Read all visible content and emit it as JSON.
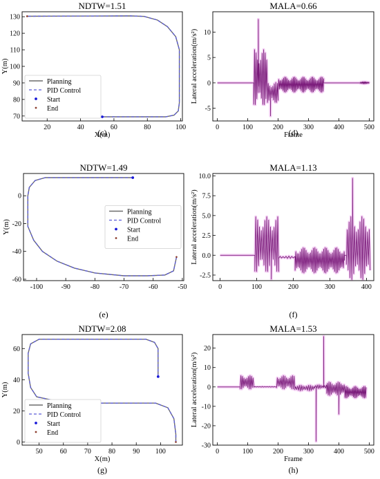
{
  "colors": {
    "planning": "#6b6b6b",
    "pid": "#5a5ad6",
    "start": "#1818d8",
    "end": "#8b3a2a",
    "accel_line": "#7a1a7a",
    "accel_glow": "#e9a6ea"
  },
  "chart_data": [
    {
      "id": "c",
      "type": "line",
      "title": "NDTW=1.51",
      "caption": "(c)",
      "xlabel": "X(m)",
      "ylabel": "Y(m)",
      "xlim": [
        5,
        101
      ],
      "ylim": [
        67,
        133
      ],
      "xticks": [
        20,
        40,
        60,
        80,
        100
      ],
      "yticks": [
        70,
        80,
        90,
        100,
        110,
        120,
        130
      ],
      "legend_pos": "bottom-left",
      "legend": [
        "Planning",
        "PID Control",
        "Start",
        "End"
      ],
      "path": [
        [
          53,
          69.5
        ],
        [
          91,
          69.5
        ],
        [
          96,
          70.5
        ],
        [
          98.5,
          73
        ],
        [
          99.2,
          78
        ],
        [
          99.2,
          110
        ],
        [
          97,
          118
        ],
        [
          92,
          124
        ],
        [
          86,
          128
        ],
        [
          78,
          130.2
        ],
        [
          70,
          130.5
        ],
        [
          8,
          130.3
        ]
      ],
      "start": [
        53,
        69.5
      ],
      "end": [
        8,
        130.3
      ]
    },
    {
      "id": "d",
      "type": "line",
      "title": "MALA=0.66",
      "caption": "(d)",
      "xlabel": "Frame",
      "ylabel": "Lateral acceleration(m/s²)",
      "xlim": [
        -15,
        515
      ],
      "ylim": [
        -7.5,
        14
      ],
      "xticks": [
        0,
        100,
        200,
        300,
        400,
        500
      ],
      "yticks": [
        -5,
        0,
        5,
        10
      ],
      "segments": [
        {
          "x0": 0,
          "x1": 120,
          "base": 0,
          "amp": 0,
          "period": 8
        },
        {
          "x0": 120,
          "x1": 165,
          "base": 0.5,
          "amp": 11,
          "period": 5
        },
        {
          "x0": 165,
          "x1": 200,
          "base": -2.5,
          "amp": 4,
          "period": 5
        },
        {
          "x0": 200,
          "x1": 350,
          "base": -0.5,
          "amp": 3,
          "period": 4
        },
        {
          "x0": 350,
          "x1": 470,
          "base": 0,
          "amp": 0,
          "period": 8
        },
        {
          "x0": 470,
          "x1": 500,
          "base": 0,
          "amp": 0.4,
          "period": 3
        }
      ],
      "peaks": [
        [
          135,
          12.5
        ],
        [
          175,
          -6.5
        ]
      ]
    },
    {
      "id": "e",
      "type": "line",
      "title": "NDTW=1.49",
      "caption": "(e)",
      "xlabel": "",
      "ylabel": "Y(m)",
      "xlim": [
        -104.5,
        -49.5
      ],
      "ylim": [
        -61,
        16
      ],
      "xticks": [
        -100,
        -90,
        -80,
        -70,
        -60,
        -50
      ],
      "yticks": [
        -60,
        -40,
        -20,
        0
      ],
      "legend_pos": "right",
      "legend": [
        "Planning",
        "PID Control",
        "Start",
        "End"
      ],
      "path": [
        [
          -67,
          13
        ],
        [
          -97,
          13
        ],
        [
          -100.5,
          11
        ],
        [
          -102.5,
          6
        ],
        [
          -103,
          0
        ],
        [
          -103,
          -22
        ],
        [
          -101,
          -32
        ],
        [
          -98,
          -40
        ],
        [
          -93,
          -47
        ],
        [
          -87,
          -52
        ],
        [
          -80,
          -55.5
        ],
        [
          -70,
          -57.5
        ],
        [
          -62,
          -57.5
        ],
        [
          -56,
          -57
        ],
        [
          -53,
          -54
        ],
        [
          -52,
          -44
        ]
      ],
      "start": [
        -67,
        13
      ],
      "end": [
        -52,
        -44
      ]
    },
    {
      "id": "f",
      "type": "line",
      "title": "MALA=1.13",
      "caption": "(f)",
      "xlabel": "",
      "ylabel": "Lateral acceleration(m/s²)",
      "xlim": [
        -20,
        420
      ],
      "ylim": [
        -3.2,
        10.3
      ],
      "xticks": [
        0,
        100,
        200,
        300,
        400
      ],
      "yticks": [
        -2.5,
        0.0,
        2.5,
        5.0,
        7.5,
        10.0
      ],
      "segments": [
        {
          "x0": 0,
          "x1": 95,
          "base": 0,
          "amp": 0,
          "period": 8
        },
        {
          "x0": 95,
          "x1": 160,
          "base": 1,
          "amp": 7,
          "period": 5
        },
        {
          "x0": 160,
          "x1": 205,
          "base": -0.3,
          "amp": 0.3,
          "period": 8
        },
        {
          "x0": 205,
          "x1": 340,
          "base": -0.8,
          "amp": 3.2,
          "period": 4
        },
        {
          "x0": 340,
          "x1": 345,
          "base": 0,
          "amp": 0,
          "period": 8
        },
        {
          "x0": 345,
          "x1": 410,
          "base": 0.5,
          "amp": 8,
          "period": 5
        }
      ],
      "peaks": [
        [
          362,
          9.7
        ],
        [
          140,
          -3
        ]
      ]
    },
    {
      "id": "g",
      "type": "line",
      "title": "NDTW=2.08",
      "caption": "(g)",
      "xlabel": "X(m)",
      "ylabel": "Y(m)",
      "xlim": [
        43,
        109
      ],
      "ylim": [
        -2,
        69
      ],
      "xticks": [
        50,
        60,
        70,
        80,
        90,
        100
      ],
      "yticks": [
        0,
        20,
        40,
        60
      ],
      "legend_pos": "bottom-left",
      "legend": [
        "Planning",
        "PID Control",
        "Start",
        "End"
      ],
      "path": [
        [
          99,
          42
        ],
        [
          99,
          60
        ],
        [
          97.5,
          64
        ],
        [
          94,
          66
        ],
        [
          50,
          66
        ],
        [
          46.5,
          63
        ],
        [
          45.5,
          57
        ],
        [
          45.5,
          44
        ],
        [
          46.5,
          35
        ],
        [
          49,
          29
        ],
        [
          55,
          27
        ],
        [
          62,
          26
        ],
        [
          70,
          25
        ],
        [
          98,
          25
        ],
        [
          103,
          22
        ],
        [
          105.5,
          15
        ],
        [
          106.3,
          5
        ],
        [
          106.3,
          0
        ]
      ],
      "start": [
        99,
        42
      ],
      "end": [
        106.3,
        0
      ]
    },
    {
      "id": "h",
      "type": "line",
      "title": "MALA=1.53",
      "caption": "(h)",
      "xlabel": "Frame",
      "ylabel": "Lateral acceleration(m/s²)",
      "xlim": [
        -15,
        515
      ],
      "ylim": [
        -30,
        27
      ],
      "xticks": [
        0,
        100,
        200,
        300,
        400,
        500
      ],
      "yticks": [
        -30,
        -20,
        -10,
        0,
        10,
        20
      ],
      "segments": [
        {
          "x0": 0,
          "x1": 75,
          "base": 0,
          "amp": 0,
          "period": 8
        },
        {
          "x0": 75,
          "x1": 120,
          "base": 2,
          "amp": 7,
          "period": 5
        },
        {
          "x0": 120,
          "x1": 195,
          "base": 0,
          "amp": 0.3,
          "period": 8
        },
        {
          "x0": 195,
          "x1": 255,
          "base": 2,
          "amp": 7,
          "period": 5
        },
        {
          "x0": 255,
          "x1": 320,
          "base": -1,
          "amp": 3,
          "period": 6
        },
        {
          "x0": 320,
          "x1": 360,
          "base": 0,
          "amp": 2,
          "period": 6
        },
        {
          "x0": 360,
          "x1": 420,
          "base": -2,
          "amp": 7,
          "period": 5
        },
        {
          "x0": 420,
          "x1": 490,
          "base": -3,
          "amp": 6,
          "period": 4
        }
      ],
      "peaks": [
        [
          350,
          26
        ],
        [
          325,
          -28
        ],
        [
          400,
          -14
        ]
      ]
    }
  ]
}
